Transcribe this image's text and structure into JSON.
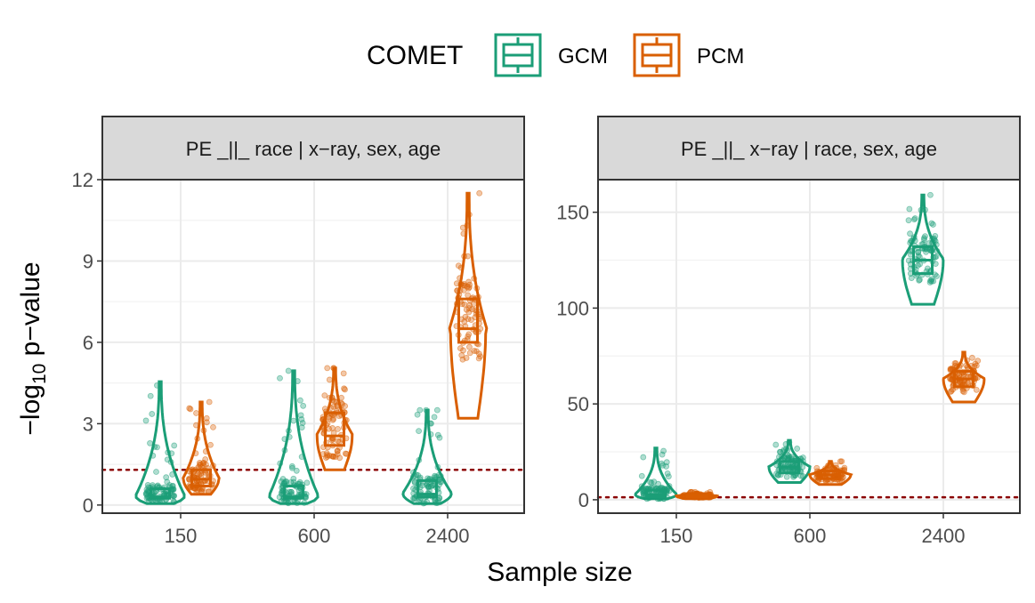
{
  "legend": {
    "title": "COMET",
    "items": [
      {
        "label": "GCM",
        "color": "#1b9e77"
      },
      {
        "label": "PCM",
        "color": "#d95f02"
      }
    ]
  },
  "axes": {
    "xlabel": "Sample size",
    "ylabel_prefix": "−log",
    "ylabel_sub": "10",
    "ylabel_suffix": " p−value"
  },
  "threshold": {
    "value": 1.3,
    "color": "#8b0000"
  },
  "chart_data": [
    {
      "type": "violin+boxplot",
      "panel_title": "PE _||_ race | x−ray, sex, age",
      "categories": [
        "150",
        "600",
        "2400"
      ],
      "ylim": [
        -0.3,
        12.0
      ],
      "yticks": [
        0,
        3,
        6,
        9,
        12
      ],
      "ytick_labels": [
        "0",
        "3",
        "6",
        "9",
        "12"
      ],
      "series": [
        {
          "name": "GCM",
          "color": "#1b9e77",
          "groups": [
            {
              "category": "150",
              "min": 0.05,
              "q1": 0.25,
              "median": 0.3,
              "q3": 0.6,
              "max": 4.55,
              "spread": 1.1
            },
            {
              "category": "600",
              "min": 0.05,
              "q1": 0.25,
              "median": 0.3,
              "q3": 0.7,
              "max": 4.95,
              "spread": 1.1
            },
            {
              "category": "2400",
              "min": 0.05,
              "q1": 0.3,
              "median": 0.4,
              "q3": 0.9,
              "max": 3.5,
              "spread": 1.1
            }
          ]
        },
        {
          "name": "PCM",
          "color": "#d95f02",
          "groups": [
            {
              "category": "150",
              "min": 0.4,
              "q1": 0.7,
              "median": 0.95,
              "q3": 1.3,
              "max": 3.8,
              "spread": 0.75
            },
            {
              "category": "600",
              "min": 1.3,
              "q1": 2.2,
              "median": 2.55,
              "q3": 3.4,
              "max": 5.05,
              "spread": 0.75
            },
            {
              "category": "2400",
              "min": 3.2,
              "q1": 6.0,
              "median": 6.5,
              "q3": 7.6,
              "max": 11.5,
              "spread": 0.75
            }
          ]
        }
      ]
    },
    {
      "type": "violin+boxplot",
      "panel_title": "PE _||_ x−ray | race, sex, age",
      "categories": [
        "150",
        "600",
        "2400"
      ],
      "ylim": [
        -7,
        167
      ],
      "yticks": [
        0,
        50,
        100,
        150
      ],
      "ytick_labels": [
        "0",
        "50",
        "100",
        "150"
      ],
      "series": [
        {
          "name": "GCM",
          "color": "#1b9e77",
          "groups": [
            {
              "category": "150",
              "min": 0.5,
              "q1": 1.5,
              "median": 2.5,
              "q3": 5,
              "max": 27,
              "spread": 0.9
            },
            {
              "category": "600",
              "min": 9,
              "q1": 14,
              "median": 17,
              "q3": 20,
              "max": 31,
              "spread": 0.9
            },
            {
              "category": "2400",
              "min": 102,
              "q1": 118,
              "median": 125,
              "q3": 132,
              "max": 159,
              "spread": 0.9
            }
          ]
        },
        {
          "name": "PCM",
          "color": "#d95f02",
          "groups": [
            {
              "category": "150",
              "min": 0.5,
              "q1": 1.5,
              "median": 2,
              "q3": 2.5,
              "max": 4,
              "spread": 0.9
            },
            {
              "category": "600",
              "min": 8,
              "q1": 11,
              "median": 13,
              "q3": 15,
              "max": 20,
              "spread": 0.9
            },
            {
              "category": "2400",
              "min": 51,
              "q1": 59,
              "median": 63,
              "q3": 67,
              "max": 77,
              "spread": 0.9
            }
          ]
        }
      ]
    }
  ]
}
